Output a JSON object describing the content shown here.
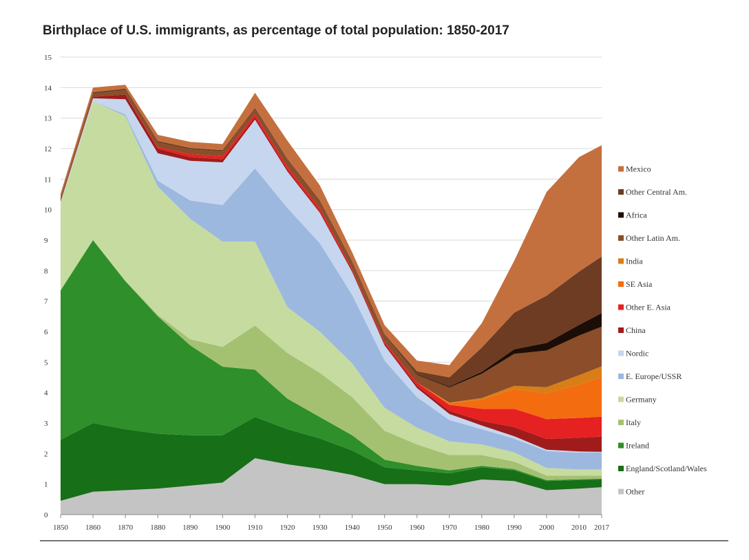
{
  "chart_data": {
    "type": "area",
    "title": "Birthplace of U.S. immigrants, as percentage of total population: 1850-2017",
    "xlabel": "",
    "ylabel": "",
    "x": [
      1850,
      1860,
      1870,
      1880,
      1890,
      1900,
      1910,
      1920,
      1930,
      1940,
      1950,
      1960,
      1970,
      1980,
      1990,
      2000,
      2010,
      2017
    ],
    "x_ticks": [
      "1850",
      "1860",
      "1870",
      "1880",
      "1890",
      "1900",
      "1910",
      "1920",
      "1930",
      "1940",
      "1950",
      "1960",
      "1970",
      "1980",
      "1990",
      "2000",
      "2010",
      "2017"
    ],
    "ylim": [
      0,
      15
    ],
    "y_ticks": [
      "0",
      "1",
      "2",
      "3",
      "4",
      "5",
      "6",
      "7",
      "8",
      "9",
      "10",
      "11",
      "12",
      "13",
      "14",
      "15"
    ],
    "grid": "horizontal",
    "stacked": true,
    "legend_position": "right",
    "series": [
      {
        "name": "Other",
        "color": "#c4c4c4",
        "values": [
          0.45,
          0.75,
          0.8,
          0.85,
          0.95,
          1.05,
          1.85,
          1.65,
          1.5,
          1.3,
          1.0,
          1.0,
          0.95,
          1.15,
          1.1,
          0.8,
          0.85,
          0.9
        ]
      },
      {
        "name": "England/Scotland/Wales",
        "color": "#176f17",
        "values": [
          2.0,
          2.25,
          2.0,
          1.8,
          1.65,
          1.55,
          1.35,
          1.15,
          1.0,
          0.8,
          0.55,
          0.45,
          0.4,
          0.4,
          0.35,
          0.3,
          0.28,
          0.25
        ]
      },
      {
        "name": "Ireland",
        "color": "#2f8f2a",
        "values": [
          4.9,
          6.0,
          4.85,
          3.85,
          2.95,
          2.25,
          1.55,
          1.0,
          0.7,
          0.5,
          0.25,
          0.15,
          0.1,
          0.05,
          0.04,
          0.03,
          0.03,
          0.03
        ]
      },
      {
        "name": "Italy",
        "color": "#a4c172",
        "values": [
          0.0,
          0.0,
          0.02,
          0.05,
          0.2,
          0.65,
          1.45,
          1.5,
          1.45,
          1.25,
          0.95,
          0.7,
          0.5,
          0.35,
          0.25,
          0.15,
          0.12,
          0.1
        ]
      },
      {
        "name": "Germany",
        "color": "#c6dba0",
        "values": [
          2.85,
          4.55,
          5.4,
          4.2,
          3.95,
          3.45,
          2.75,
          1.5,
          1.35,
          1.1,
          0.75,
          0.55,
          0.45,
          0.35,
          0.3,
          0.25,
          0.2,
          0.2
        ]
      },
      {
        "name": "E. Europe/USSR",
        "color": "#9db8df",
        "values": [
          0.0,
          0.0,
          0.05,
          0.2,
          0.6,
          1.2,
          2.4,
          3.25,
          2.9,
          2.25,
          1.55,
          1.0,
          0.7,
          0.5,
          0.45,
          0.55,
          0.55,
          0.55
        ]
      },
      {
        "name": "Nordic",
        "color": "#c6d6ee",
        "values": [
          0.05,
          0.1,
          0.5,
          0.9,
          1.3,
          1.4,
          1.6,
          1.2,
          1.0,
          0.75,
          0.5,
          0.3,
          0.2,
          0.12,
          0.08,
          0.05,
          0.04,
          0.03
        ]
      },
      {
        "name": "China",
        "color": "#a01c1c",
        "values": [
          0.0,
          0.05,
          0.15,
          0.15,
          0.12,
          0.1,
          0.08,
          0.06,
          0.05,
          0.05,
          0.06,
          0.08,
          0.1,
          0.15,
          0.3,
          0.35,
          0.45,
          0.5
        ]
      },
      {
        "name": "Other E. Asia",
        "color": "#e52121",
        "values": [
          0.0,
          0.0,
          0.0,
          0.05,
          0.1,
          0.1,
          0.1,
          0.1,
          0.1,
          0.05,
          0.05,
          0.1,
          0.2,
          0.4,
          0.6,
          0.65,
          0.65,
          0.65
        ]
      },
      {
        "name": "SE Asia",
        "color": "#f36d10",
        "values": [
          0.0,
          0.0,
          0.0,
          0.0,
          0.0,
          0.0,
          0.0,
          0.0,
          0.0,
          0.0,
          0.0,
          0.0,
          0.05,
          0.3,
          0.65,
          0.85,
          1.1,
          1.3
        ]
      },
      {
        "name": "India",
        "color": "#d87e17",
        "values": [
          0.0,
          0.0,
          0.0,
          0.0,
          0.0,
          0.0,
          0.0,
          0.0,
          0.0,
          0.0,
          0.0,
          0.0,
          0.02,
          0.05,
          0.1,
          0.2,
          0.3,
          0.35
        ]
      },
      {
        "name": "Other Latin Am.",
        "color": "#8b4d2a",
        "values": [
          0.1,
          0.1,
          0.15,
          0.15,
          0.15,
          0.15,
          0.15,
          0.2,
          0.2,
          0.2,
          0.2,
          0.25,
          0.5,
          0.8,
          1.05,
          1.2,
          1.3,
          1.3
        ]
      },
      {
        "name": "Africa",
        "color": "#1c0e06",
        "values": [
          0.0,
          0.0,
          0.0,
          0.0,
          0.0,
          0.0,
          0.0,
          0.0,
          0.0,
          0.0,
          0.0,
          0.02,
          0.03,
          0.06,
          0.15,
          0.25,
          0.35,
          0.45
        ]
      },
      {
        "name": "Other Central Am.",
        "color": "#6e3c22",
        "values": [
          0.05,
          0.05,
          0.05,
          0.05,
          0.05,
          0.05,
          0.05,
          0.05,
          0.05,
          0.05,
          0.05,
          0.1,
          0.3,
          0.8,
          1.2,
          1.55,
          1.75,
          1.85
        ]
      },
      {
        "name": "Mexico",
        "color": "#c4703e",
        "values": [
          0.12,
          0.15,
          0.12,
          0.2,
          0.2,
          0.2,
          0.5,
          0.6,
          0.5,
          0.3,
          0.3,
          0.35,
          0.4,
          0.8,
          1.7,
          3.4,
          3.75,
          3.65
        ]
      }
    ]
  }
}
